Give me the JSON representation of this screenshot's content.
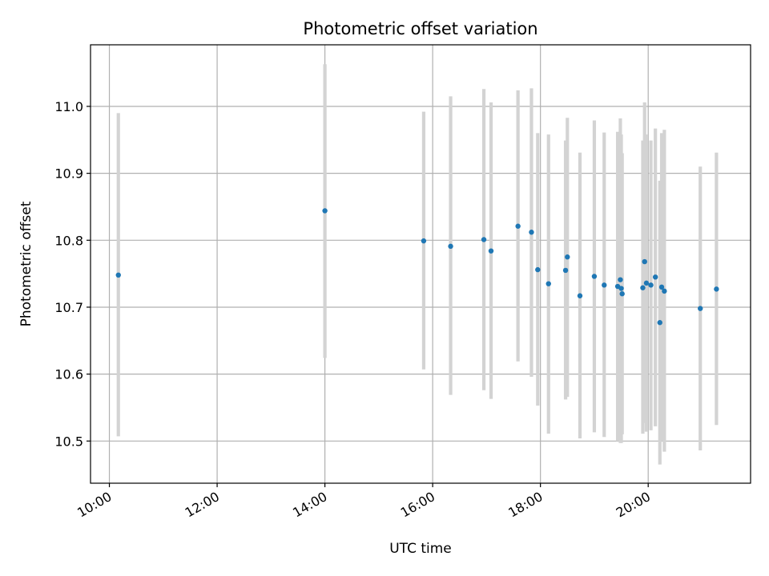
{
  "chart_data": {
    "type": "scatter",
    "title": "Photometric offset variation",
    "xlabel": "UTC time",
    "ylabel": "Photometric offset",
    "x_unit": "UTC time of day",
    "xlim": [
      "09:39",
      "21:54"
    ],
    "ylim": [
      10.437,
      11.092
    ],
    "x_ticks": [
      "10:00",
      "12:00",
      "14:00",
      "16:00",
      "18:00",
      "20:00"
    ],
    "y_ticks": [
      10.5,
      10.6,
      10.7,
      10.8,
      10.9,
      11.0
    ],
    "y_tick_labels": [
      "10.5",
      "10.6",
      "10.7",
      "10.8",
      "10.9",
      "11.0"
    ],
    "grid": true,
    "series": [
      {
        "color": "#1f77b4",
        "error_bar_color": "#d3d3d3",
        "points": [
          {
            "x": "10:10",
            "y": 10.748,
            "ylow": 10.507,
            "yhigh": 10.99
          },
          {
            "x": "14:00",
            "y": 10.844,
            "ylow": 10.624,
            "yhigh": 11.063
          },
          {
            "x": "15:50",
            "y": 10.799,
            "ylow": 10.607,
            "yhigh": 10.992
          },
          {
            "x": "16:20",
            "y": 10.791,
            "ylow": 10.569,
            "yhigh": 11.015
          },
          {
            "x": "16:57",
            "y": 10.801,
            "ylow": 10.576,
            "yhigh": 11.026
          },
          {
            "x": "17:05",
            "y": 10.784,
            "ylow": 10.563,
            "yhigh": 11.006
          },
          {
            "x": "17:35",
            "y": 10.821,
            "ylow": 10.619,
            "yhigh": 11.024
          },
          {
            "x": "17:50",
            "y": 10.812,
            "ylow": 10.596,
            "yhigh": 11.027
          },
          {
            "x": "17:57",
            "y": 10.756,
            "ylow": 10.553,
            "yhigh": 10.96
          },
          {
            "x": "18:09",
            "y": 10.735,
            "ylow": 10.511,
            "yhigh": 10.958
          },
          {
            "x": "18:28",
            "y": 10.755,
            "ylow": 10.562,
            "yhigh": 10.949
          },
          {
            "x": "18:30",
            "y": 10.775,
            "ylow": 10.566,
            "yhigh": 10.983
          },
          {
            "x": "18:44",
            "y": 10.717,
            "ylow": 10.504,
            "yhigh": 10.931
          },
          {
            "x": "19:00",
            "y": 10.746,
            "ylow": 10.513,
            "yhigh": 10.979
          },
          {
            "x": "19:11",
            "y": 10.733,
            "ylow": 10.506,
            "yhigh": 10.961
          },
          {
            "x": "19:26",
            "y": 10.731,
            "ylow": 10.5,
            "yhigh": 10.962
          },
          {
            "x": "19:29",
            "y": 10.741,
            "ylow": 10.497,
            "yhigh": 10.982
          },
          {
            "x": "19:30",
            "y": 10.728,
            "ylow": 10.497,
            "yhigh": 10.958
          },
          {
            "x": "19:31",
            "y": 10.72,
            "ylow": 10.51,
            "yhigh": 10.93
          },
          {
            "x": "19:54",
            "y": 10.729,
            "ylow": 10.511,
            "yhigh": 10.949
          },
          {
            "x": "19:56",
            "y": 10.768,
            "ylow": 10.527,
            "yhigh": 11.006
          },
          {
            "x": "19:58",
            "y": 10.736,
            "ylow": 10.514,
            "yhigh": 10.958
          },
          {
            "x": "20:03",
            "y": 10.733,
            "ylow": 10.516,
            "yhigh": 10.949
          },
          {
            "x": "20:08",
            "y": 10.745,
            "ylow": 10.522,
            "yhigh": 10.967
          },
          {
            "x": "20:13",
            "y": 10.677,
            "ylow": 10.465,
            "yhigh": 10.889
          },
          {
            "x": "20:15",
            "y": 10.73,
            "ylow": 10.5,
            "yhigh": 10.96
          },
          {
            "x": "20:18",
            "y": 10.724,
            "ylow": 10.484,
            "yhigh": 10.965
          },
          {
            "x": "20:58",
            "y": 10.698,
            "ylow": 10.486,
            "yhigh": 10.91
          },
          {
            "x": "21:16",
            "y": 10.727,
            "ylow": 10.524,
            "yhigh": 10.931
          }
        ]
      }
    ]
  }
}
